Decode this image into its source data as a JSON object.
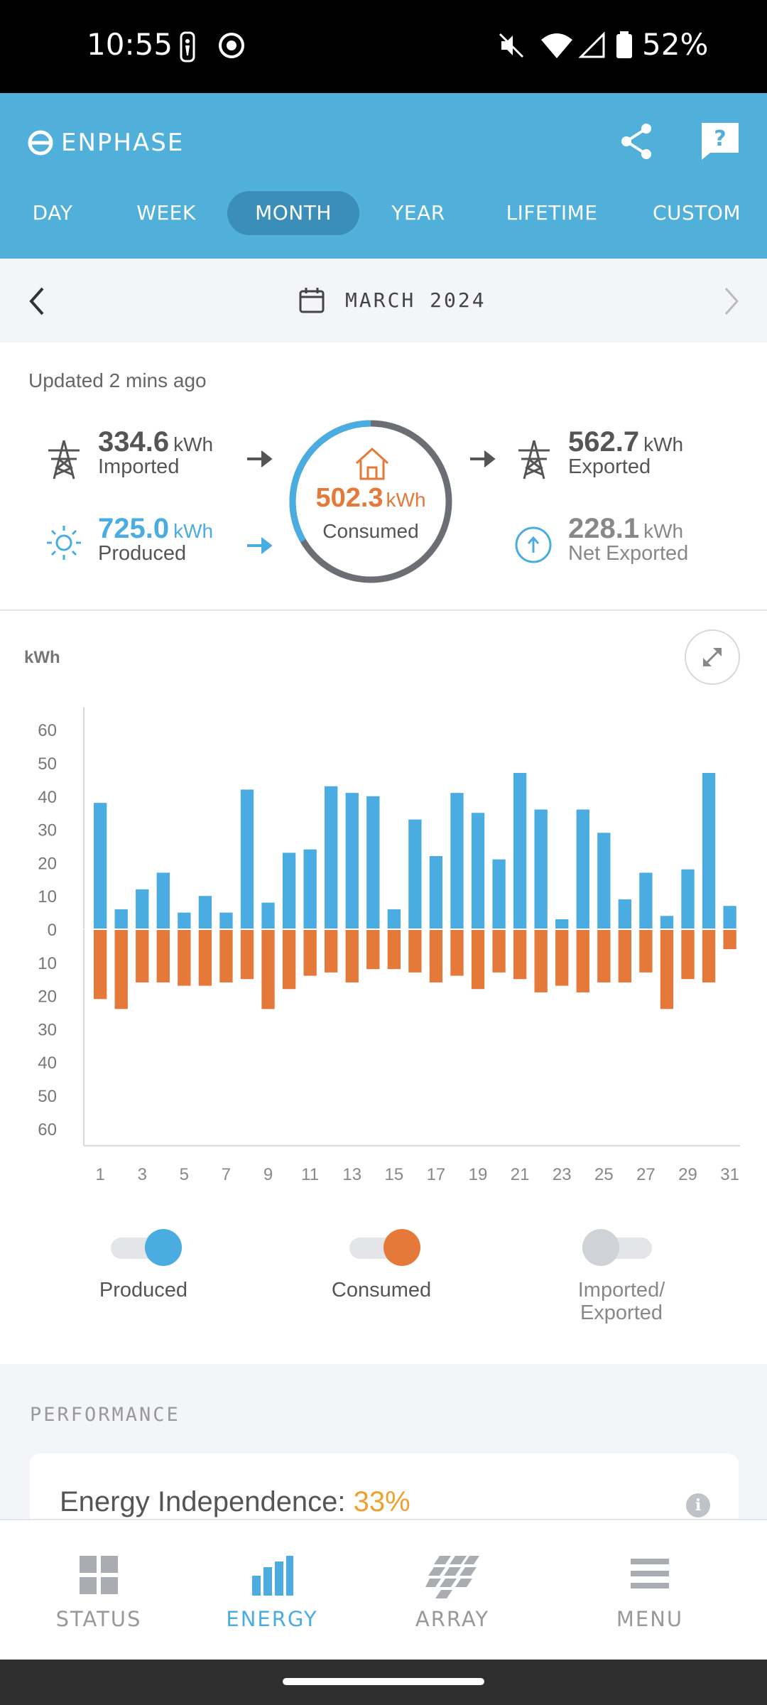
{
  "status_bar": {
    "time": "10:55",
    "battery": "52%"
  },
  "app": {
    "brand": "ENPHASE"
  },
  "tabs": [
    {
      "label": "DAY",
      "active": false
    },
    {
      "label": "WEEK",
      "active": false
    },
    {
      "label": "MONTH",
      "active": true
    },
    {
      "label": "YEAR",
      "active": false
    },
    {
      "label": "LIFETIME",
      "active": false
    },
    {
      "label": "CUSTOM",
      "active": false
    }
  ],
  "period": {
    "label": "MARCH 2024"
  },
  "summary": {
    "updated": "Updated 2 mins ago",
    "imported": {
      "value": "334.6",
      "unit": "kWh",
      "label": "Imported"
    },
    "produced": {
      "value": "725.0",
      "unit": "kWh",
      "label": "Produced"
    },
    "consumed": {
      "value": "502.3",
      "unit": "kWh",
      "label": "Consumed"
    },
    "exported": {
      "value": "562.7",
      "unit": "kWh",
      "label": "Exported"
    },
    "net_exported": {
      "value": "228.1",
      "unit": "kWh",
      "label": "Net Exported"
    }
  },
  "chart_data": {
    "type": "bar",
    "ylabel": "kWh",
    "ylim": [
      -60,
      60
    ],
    "yticks": [
      "60",
      "50",
      "40",
      "30",
      "20",
      "10",
      "0",
      "10",
      "20",
      "30",
      "40",
      "50",
      "60"
    ],
    "x": [
      1,
      2,
      3,
      4,
      5,
      6,
      7,
      8,
      9,
      10,
      11,
      12,
      13,
      14,
      15,
      16,
      17,
      18,
      19,
      20,
      21,
      22,
      23,
      24,
      25,
      26,
      27,
      28,
      29,
      30,
      31
    ],
    "xticks": [
      "1",
      "3",
      "5",
      "7",
      "9",
      "11",
      "13",
      "15",
      "17",
      "19",
      "21",
      "23",
      "25",
      "27",
      "29",
      "31"
    ],
    "series": [
      {
        "name": "Produced",
        "color": "#4aace0",
        "values": [
          38,
          6,
          12,
          17,
          5,
          10,
          5,
          42,
          8,
          23,
          24,
          43,
          41,
          40,
          6,
          33,
          22,
          41,
          35,
          21,
          47,
          36,
          3,
          36,
          29,
          9,
          17,
          4,
          18,
          47,
          7
        ]
      },
      {
        "name": "Consumed",
        "color": "#e5793a",
        "values": [
          -21,
          -24,
          -16,
          -16,
          -17,
          -17,
          -16,
          -15,
          -24,
          -18,
          -14,
          -13,
          -16,
          -12,
          -12,
          -13,
          -16,
          -14,
          -18,
          -13,
          -15,
          -19,
          -17,
          -19,
          -16,
          -16,
          -13,
          -24,
          -15,
          -16,
          -6
        ]
      }
    ]
  },
  "legend": [
    {
      "label": "Produced",
      "on": true,
      "color": "#4aace0"
    },
    {
      "label": "Consumed",
      "on": true,
      "color": "#e5793a"
    },
    {
      "label": "Imported/\nExported",
      "on": false,
      "color": "#cfd2d6"
    }
  ],
  "performance": {
    "section_title": "PERFORMANCE",
    "energy_independence_label": "Energy Independence:",
    "energy_independence_value": "33%"
  },
  "bottom_nav": [
    {
      "label": "STATUS",
      "icon": "status-grid-icon",
      "active": false
    },
    {
      "label": "ENERGY",
      "icon": "energy-bars-icon",
      "active": true
    },
    {
      "label": "ARRAY",
      "icon": "array-panels-icon",
      "active": false
    },
    {
      "label": "MENU",
      "icon": "menu-icon",
      "active": false
    }
  ]
}
